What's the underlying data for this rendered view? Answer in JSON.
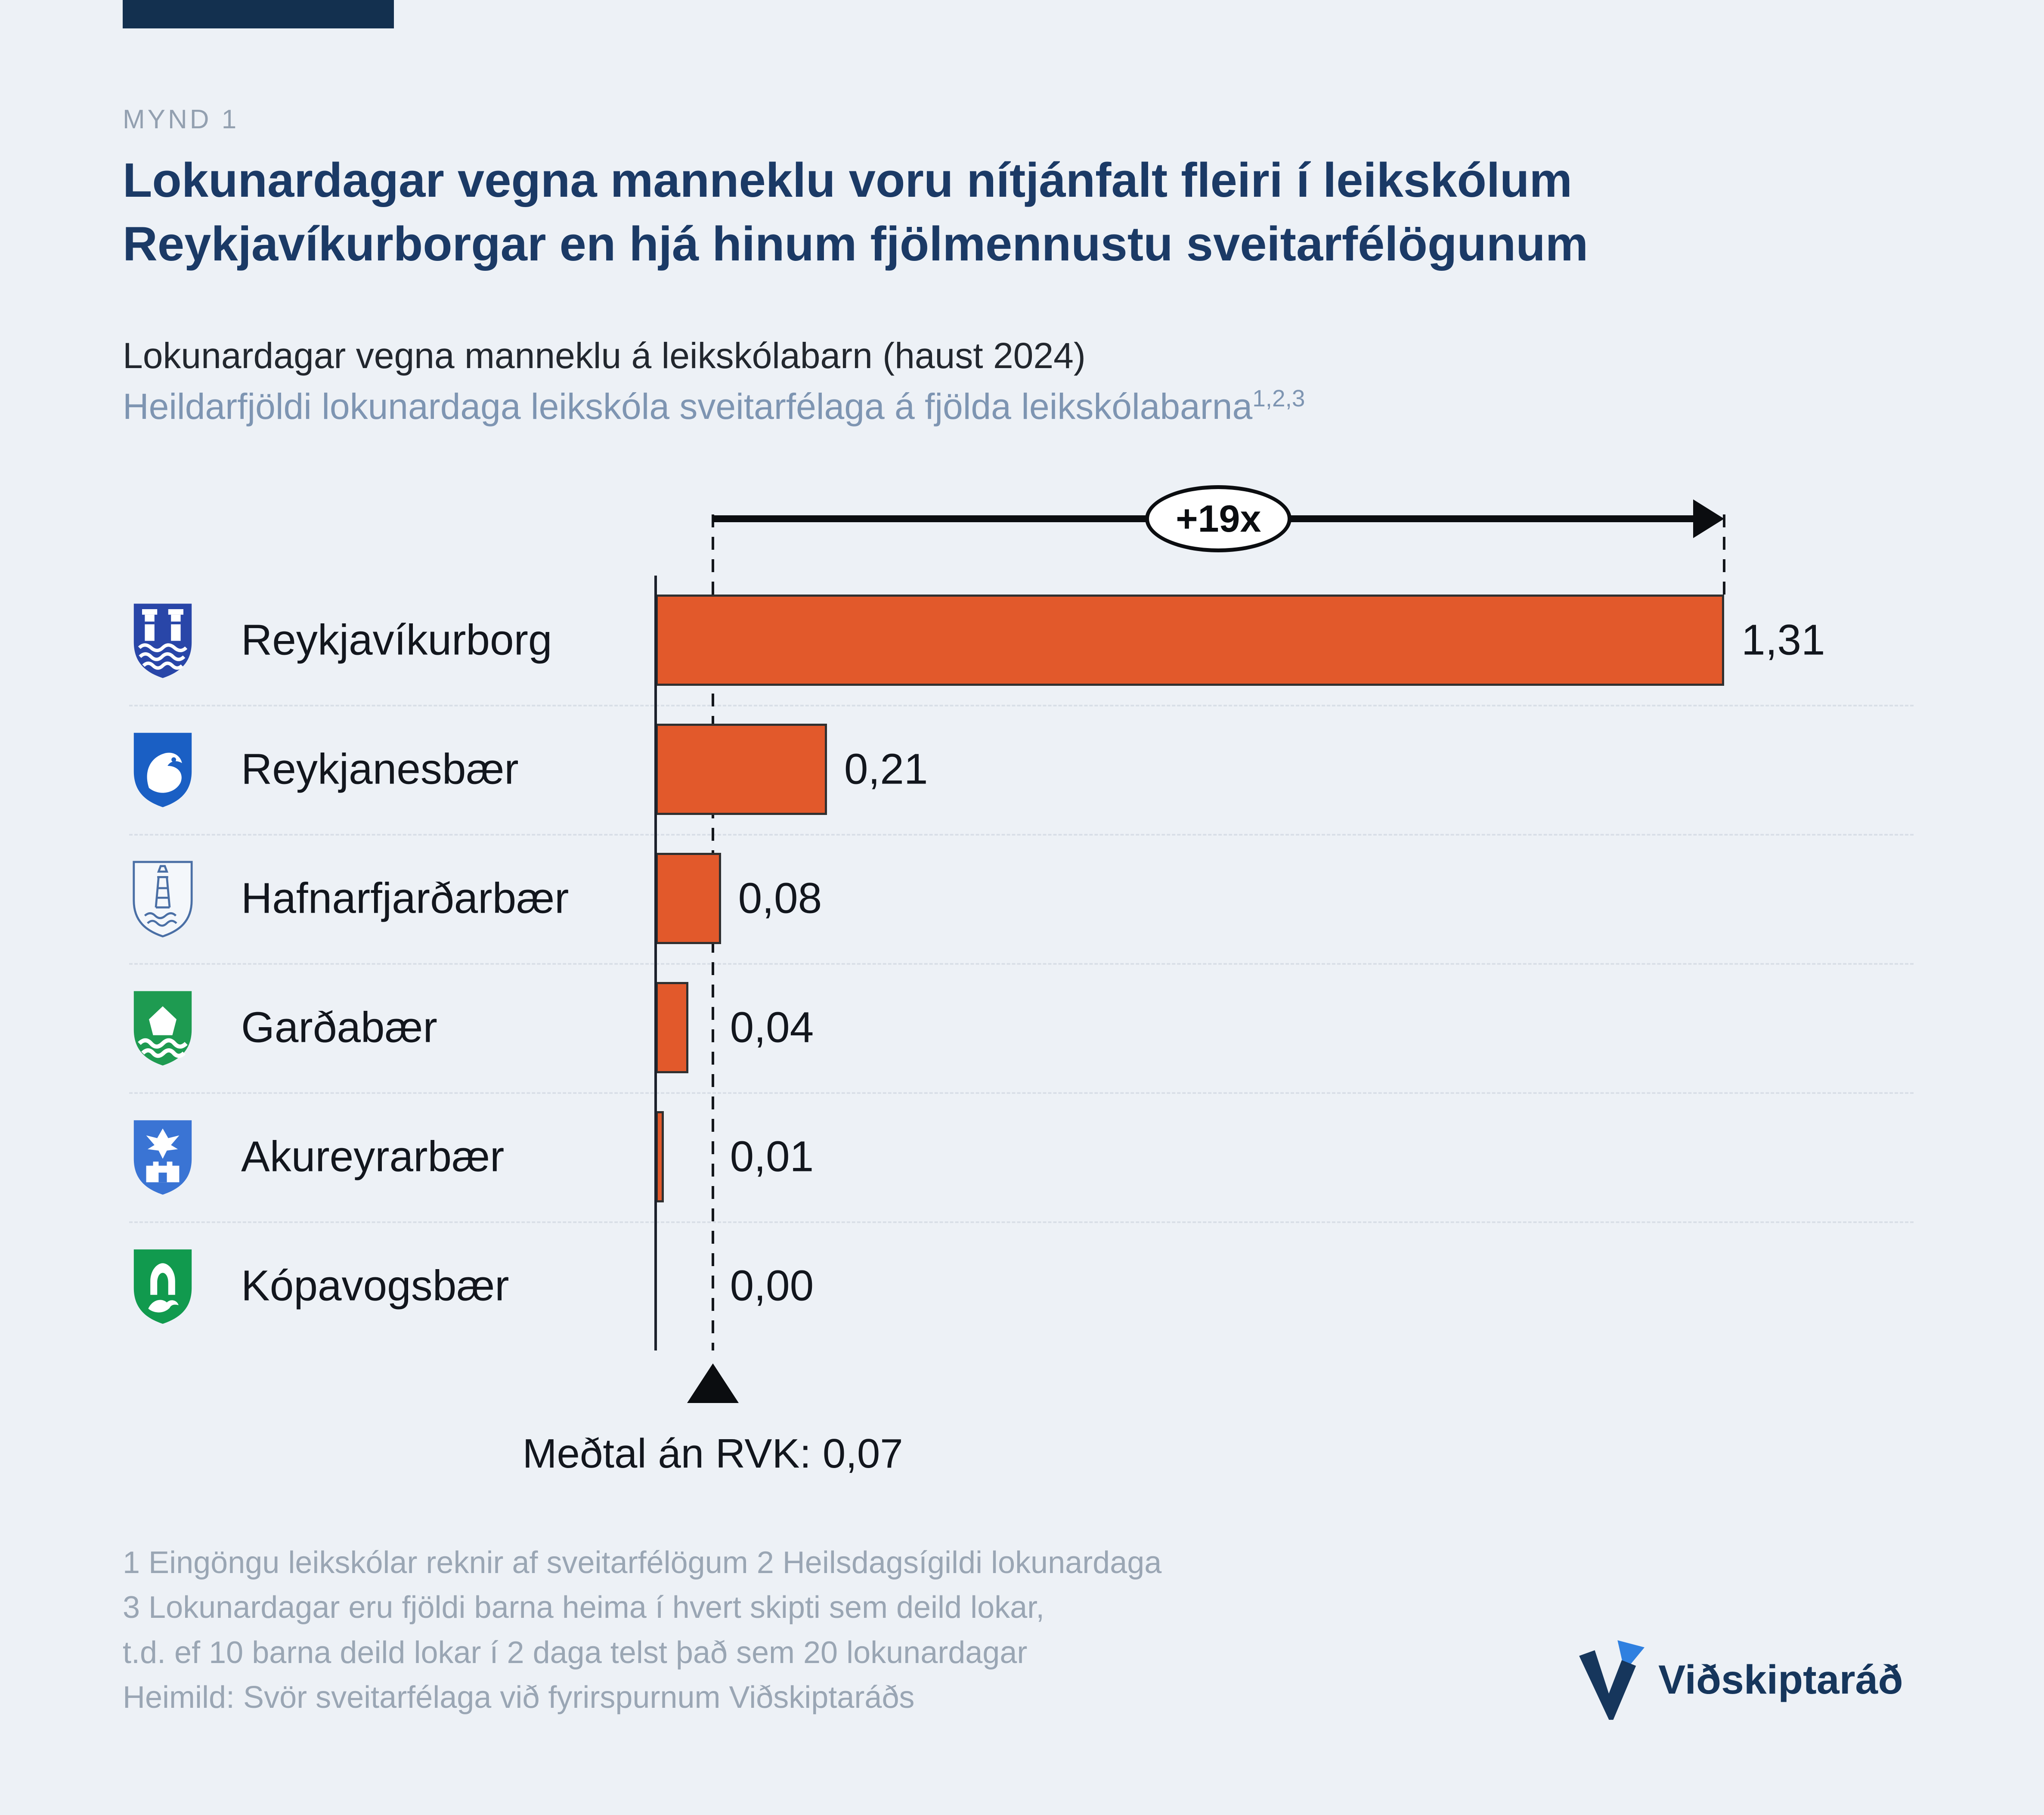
{
  "header": {
    "kicker": "MYND 1",
    "title_line1": "Lokunardagar vegna manneklu voru nítjánfalt fleiri í leikskólum",
    "title_line2": "Reykjavíkurborgar en hjá hinum fjölmennustu sveitarfélögunum",
    "subtitle_primary": "Lokunardagar vegna manneklu á leikskólabarn (haust 2024)",
    "subtitle_secondary": "Heildarfjöldi lokunardaga leikskóla sveitarfélaga á fjölda leikskólabarna",
    "subtitle_secondary_superscript": "1,2,3"
  },
  "chart_data": {
    "type": "bar",
    "orientation": "horizontal",
    "title": "Lokunardagar vegna manneklu á leikskólabarn (haust 2024)",
    "categories": [
      "Reykjavíkurborg",
      "Reykjanesbær",
      "Hafnarfjarðarbær",
      "Garðabær",
      "Akureyrarbær",
      "Kópavogsbær"
    ],
    "values": [
      1.31,
      0.21,
      0.08,
      0.04,
      0.01,
      0.0
    ],
    "value_labels": [
      "1,31",
      "0,21",
      "0,08",
      "0,04",
      "0,01",
      "0,00"
    ],
    "icons": [
      "reykjavikurborg-coat-of-arms",
      "reykjanesbaer-coat-of-arms",
      "hafnarfjardarbaer-coat-of-arms",
      "gardabaer-coat-of-arms",
      "akureyrarbaer-coat-of-arms",
      "kopavogsbaer-coat-of-arms"
    ],
    "xlim": [
      0,
      1.31
    ],
    "bar_color": "#E2592B",
    "grid": "dashed-row-separators",
    "legend": "none",
    "annotations": {
      "multiplier": "+19x",
      "mean_label": "Meðtal án RVK: 0,07",
      "mean_value": 0.07
    }
  },
  "footnotes": [
    "1 Eingöngu leikskólar reknir af sveitarfélögum 2 Heilsdagsígildi lokunardaga",
    "3 Lokunardagar eru fjöldi barna heima í hvert skipti sem deild lokar,",
    "t.d. ef 10 barna deild lokar í 2 daga telst það sem 20 lokunardagar",
    "Heimild: Svör sveitarfélaga við fyrirspurnum Viðskiptaráðs"
  ],
  "branding": {
    "logo_text": "Viðskiptaráð"
  },
  "colors": {
    "accent_navy": "#16365C",
    "bar_orange": "#E2592B",
    "muted_blue": "#7E95B2",
    "footnote_gray": "#9AA6B4",
    "background": "#EDF1F6"
  }
}
